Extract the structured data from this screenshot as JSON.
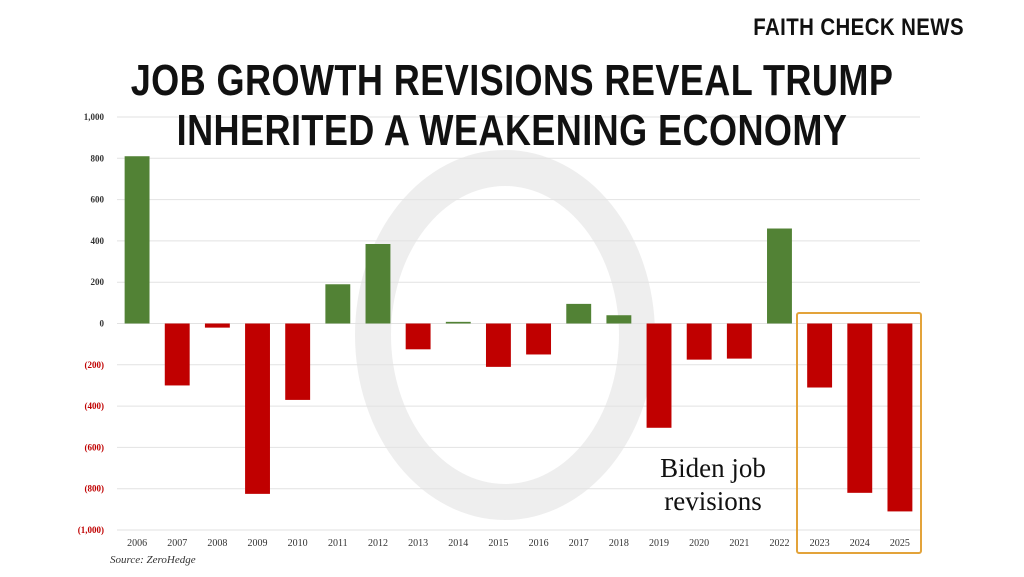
{
  "brand": "FAITH CHECK NEWS",
  "headline": {
    "line1": "JOB GROWTH REVISIONS REVEAL TRUMP",
    "line2": "INHERITED A WEAKENING ECONOMY"
  },
  "annotation": {
    "line1": "Biden job",
    "line2": "revisions"
  },
  "source": "Source: ZeroHedge",
  "colors": {
    "positive": "#528235",
    "negative": "#c00000",
    "highlight": "#e3a33a",
    "grid": "#e2e2e2"
  },
  "chart_data": {
    "type": "bar",
    "categories": [
      "2006",
      "2007",
      "2008",
      "2009",
      "2010",
      "2011",
      "2012",
      "2013",
      "2014",
      "2015",
      "2016",
      "2017",
      "2018",
      "2019",
      "2020",
      "2021",
      "2022",
      "2023",
      "2024",
      "2025"
    ],
    "values": [
      810,
      -300,
      -20,
      -825,
      -370,
      190,
      385,
      -125,
      8,
      -210,
      -150,
      95,
      40,
      -505,
      -175,
      -170,
      460,
      -310,
      -820,
      -910
    ],
    "yticks": [
      {
        "v": 1000,
        "label": "1,000"
      },
      {
        "v": 800,
        "label": "800"
      },
      {
        "v": 600,
        "label": "600"
      },
      {
        "v": 400,
        "label": "400"
      },
      {
        "v": 200,
        "label": "200"
      },
      {
        "v": 0,
        "label": "0"
      },
      {
        "v": -200,
        "label": "(200)"
      },
      {
        "v": -400,
        "label": "(400)"
      },
      {
        "v": -600,
        "label": "(600)"
      },
      {
        "v": -800,
        "label": "(800)"
      },
      {
        "v": -1000,
        "label": "(1,000)"
      }
    ],
    "ylim": [
      -1000,
      1000
    ],
    "grid": true,
    "highlighted_categories": [
      "2023",
      "2024",
      "2025"
    ]
  }
}
